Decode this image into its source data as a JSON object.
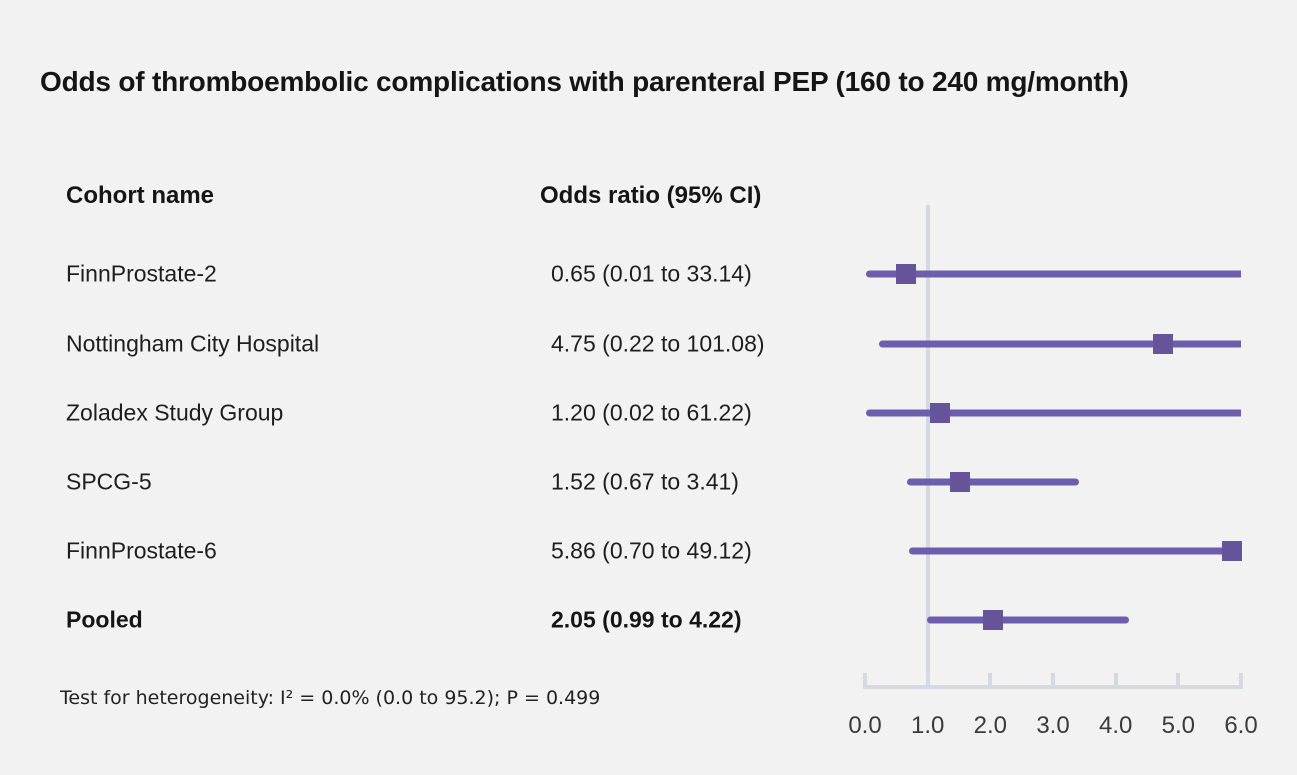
{
  "chart_data": {
    "type": "forest",
    "title": "Odds of thromboembolic complications with parenteral PEP (160 to 240 mg/month)",
    "columns": [
      "Cohort name",
      "Odds ratio (95% CI)"
    ],
    "footnote": "Test for heterogeneity: I² = 0.0% (0.0 to 95.2); P = 0.499",
    "xlabel": "",
    "ylabel": "",
    "xlim": [
      0.0,
      6.0
    ],
    "x_ticks": [
      "0.0",
      "1.0",
      "2.0",
      "3.0",
      "4.0",
      "5.0",
      "6.0"
    ],
    "x_tick_values": [
      0,
      1,
      2,
      3,
      4,
      5,
      6
    ],
    "reference_line_x": 1.0,
    "legend": "none",
    "grid": "off",
    "rows": [
      {
        "cohort": "FinnProstate-2",
        "or": 0.65,
        "ci_low": 0.01,
        "ci_high": 33.14,
        "or_label": "0.65 (0.01 to 33.14)",
        "bold": false
      },
      {
        "cohort": "Nottingham City Hospital",
        "or": 4.75,
        "ci_low": 0.22,
        "ci_high": 101.08,
        "or_label": "4.75 (0.22 to 101.08)",
        "bold": false
      },
      {
        "cohort": "Zoladex Study Group",
        "or": 1.2,
        "ci_low": 0.02,
        "ci_high": 61.22,
        "or_label": "1.20 (0.02 to 61.22)",
        "bold": false
      },
      {
        "cohort": "SPCG-5",
        "or": 1.52,
        "ci_low": 0.67,
        "ci_high": 3.41,
        "or_label": "1.52 (0.67 to 3.41)",
        "bold": false
      },
      {
        "cohort": "FinnProstate-6",
        "or": 5.86,
        "ci_low": 0.7,
        "ci_high": 49.12,
        "or_label": "5.86 (0.70 to 49.12)",
        "bold": false
      },
      {
        "cohort": "Pooled",
        "or": 2.05,
        "ci_low": 0.99,
        "ci_high": 4.22,
        "or_label": "2.05 (0.99 to 4.22)",
        "bold": true
      }
    ],
    "colors": {
      "background": "#f2f2f2",
      "ci_bar": "#6e5dac",
      "marker": "#655499",
      "axis": "#d5d9e0",
      "reference_line": "#d4d8e0"
    }
  }
}
